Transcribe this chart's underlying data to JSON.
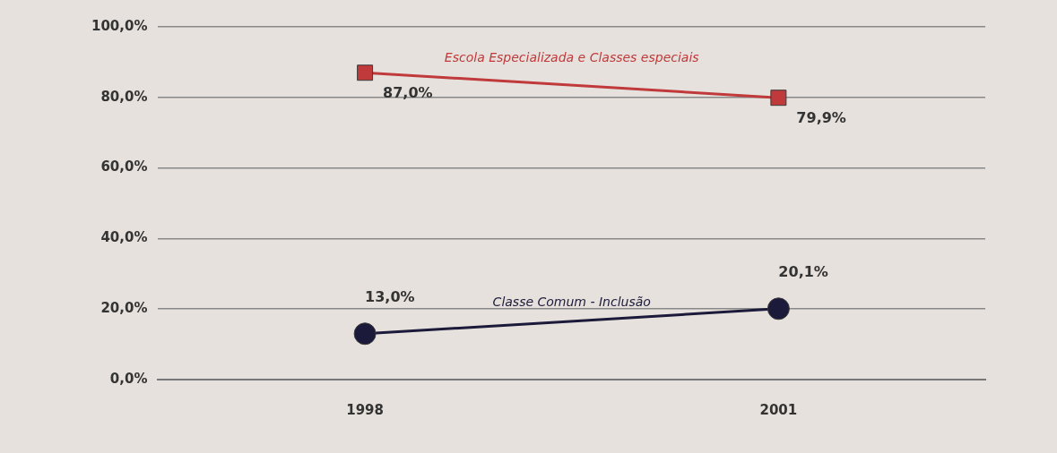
{
  "chart_data": {
    "type": "line",
    "categories": [
      "1998",
      "2001"
    ],
    "series": [
      {
        "name": "Escola Especializada e Classes especiais",
        "color": "#c0393b",
        "marker": "square",
        "values": [
          87.0,
          79.9
        ],
        "value_labels": [
          "87,0%",
          "79,9%"
        ]
      },
      {
        "name": "Classe Comum - Inclusão",
        "color": "#1c1a3a",
        "marker": "circle",
        "values": [
          13.0,
          20.1
        ],
        "value_labels": [
          "13,0%",
          "20,1%"
        ]
      }
    ],
    "ylim": [
      0,
      100
    ],
    "yticks": [
      {
        "value": 0,
        "label": "0,0%"
      },
      {
        "value": 20,
        "label": "20,0%"
      },
      {
        "value": 40,
        "label": "40,0%"
      },
      {
        "value": 60,
        "label": "60,0%"
      },
      {
        "value": 80,
        "label": "80,0%"
      },
      {
        "value": 100,
        "label": "100,0%"
      }
    ],
    "grid": "y",
    "legend": false
  }
}
